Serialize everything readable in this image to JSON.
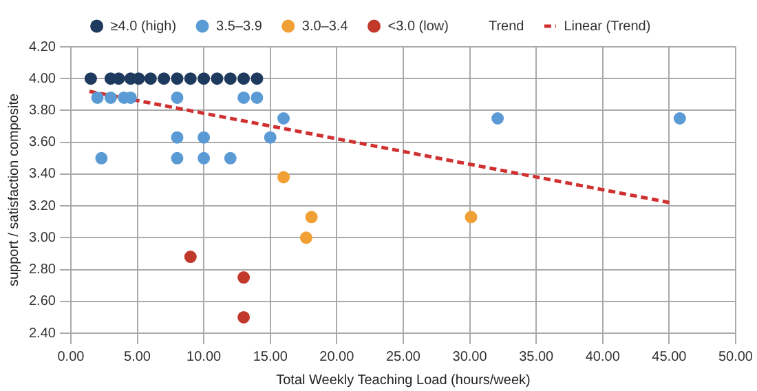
{
  "chart_data": {
    "type": "scatter",
    "xlabel": "Total Weekly Teaching Load (hours/week)",
    "ylabel": "support / satisfaction composite",
    "legend_title": "Trend",
    "legend": "top",
    "grid": true,
    "marker": "circle",
    "xlim": [
      0,
      50
    ],
    "xticks": [
      {
        "value": 0,
        "label": "0.00"
      },
      {
        "value": 5,
        "label": "5.00"
      },
      {
        "value": 10,
        "label": "10.00"
      },
      {
        "value": 15,
        "label": "15.00"
      },
      {
        "value": 20,
        "label": "20.00"
      },
      {
        "value": 25,
        "label": "25.00"
      },
      {
        "value": 30,
        "label": "30.00"
      },
      {
        "value": 35,
        "label": "35.00"
      },
      {
        "value": 40,
        "label": "40.00"
      },
      {
        "value": 45,
        "label": "45.00"
      },
      {
        "value": 50,
        "label": "50.00"
      }
    ],
    "ylim": [
      2.4,
      4.2
    ],
    "yticks": [
      {
        "value": 2.4,
        "label": "2.40"
      },
      {
        "value": 2.6,
        "label": "2.60"
      },
      {
        "value": 2.8,
        "label": "2.80"
      },
      {
        "value": 3.0,
        "label": "3.00"
      },
      {
        "value": 3.2,
        "label": "3.20"
      },
      {
        "value": 3.4,
        "label": "3.40"
      },
      {
        "value": 3.6,
        "label": "3.60"
      },
      {
        "value": 3.8,
        "label": "3.80"
      },
      {
        "value": 4.0,
        "label": "4.00"
      },
      {
        "value": 4.2,
        "label": "4.20"
      }
    ],
    "series": [
      {
        "name": "≥4.0 (high)",
        "color": "#1f3a5f",
        "x": [
          1.5,
          3.0,
          3.6,
          4.5,
          5.1,
          6.0,
          7.0,
          8.0,
          9.0,
          10.0,
          11.0,
          12.0,
          13.0,
          14.0
        ],
        "values": [
          4,
          4,
          4,
          4,
          4,
          4,
          4,
          4,
          4,
          4,
          4,
          4,
          4,
          4
        ]
      },
      {
        "name": "3.5–3.9",
        "color": "#5b9bd5",
        "x": [
          2.0,
          3.0,
          4.0,
          4.5,
          8.0,
          13.0,
          14.0,
          16.0,
          32.1,
          45.8,
          8.0,
          10.0,
          15.0,
          2.3,
          8.0,
          10.0,
          12.0
        ],
        "values": [
          3.88,
          3.88,
          3.88,
          3.88,
          3.88,
          3.88,
          3.88,
          3.75,
          3.75,
          3.75,
          3.63,
          3.63,
          3.63,
          3.5,
          3.5,
          3.5,
          3.5
        ]
      },
      {
        "name": "3.0–3.4",
        "color": "#f0a035",
        "x": [
          16.0,
          18.1,
          17.7,
          30.1
        ],
        "values": [
          3.38,
          3.13,
          3.0,
          3.13
        ]
      },
      {
        "name": "<3.0 (low)",
        "color": "#c0392b",
        "x": [
          9.0,
          13.0,
          13.0
        ],
        "values": [
          2.88,
          2.75,
          2.5
        ]
      },
      {
        "name": "Linear (Trend)",
        "type": "line",
        "line_style": "dashed",
        "marker": "none",
        "color": "#d03030",
        "x": [
          1.4,
          45.1
        ],
        "values": [
          3.92,
          3.22
        ]
      }
    ]
  }
}
